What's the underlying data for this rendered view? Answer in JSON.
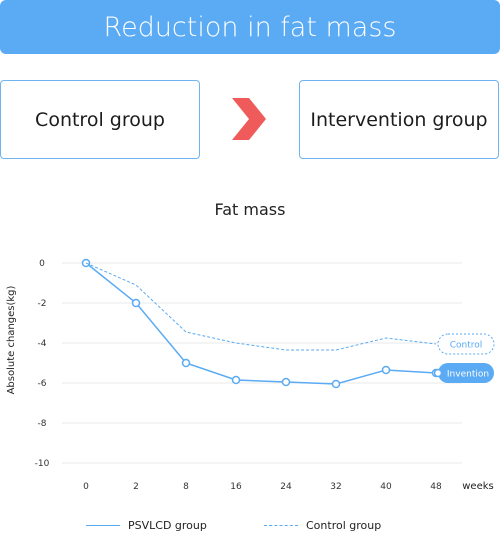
{
  "header": {
    "title": "Reduction in fat mass"
  },
  "comparison": {
    "left_label": "Control group",
    "right_label": "Intervention group"
  },
  "colors": {
    "accent": "#5aaaf4",
    "arrow": "#ef5b5b",
    "grid": "#e9e9e9"
  },
  "chart_data": {
    "type": "line",
    "title": "Fat mass",
    "ylabel": "Absolute changes(kg)",
    "xlabel": "weeks",
    "categories": [
      "0",
      "2",
      "8",
      "16",
      "24",
      "32",
      "40",
      "48"
    ],
    "ylim": [
      -10,
      0
    ],
    "yticks": [
      "0",
      "-2",
      "-4",
      "-6",
      "-8",
      "-10"
    ],
    "grid": true,
    "series": [
      {
        "name": "PSVLCD group",
        "values": [
          0,
          -2.0,
          -5.0,
          -5.85,
          -5.95,
          -6.05,
          -5.35,
          -5.5
        ],
        "style": "solid",
        "markers": true,
        "end_label": "Invention"
      },
      {
        "name": "Control group",
        "values": [
          0,
          -1.1,
          -3.45,
          -4.0,
          -4.35,
          -4.35,
          -3.75,
          -4.05
        ],
        "style": "dashed",
        "markers": false,
        "end_label": "Control"
      }
    ]
  }
}
